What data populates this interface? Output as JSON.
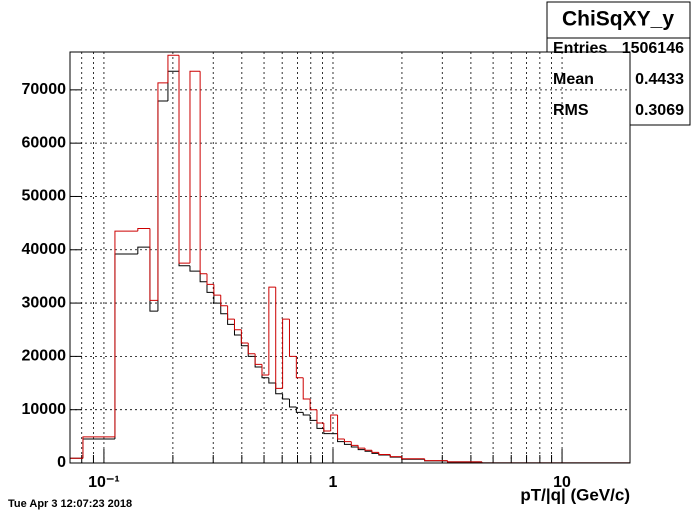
{
  "chart_data": {
    "type": "histogram",
    "title": "ChiSqXY_y",
    "x_label": "pT/|q| (GeV/c)",
    "timestamp": "Tue Apr  3 12:07:23 2018",
    "stats": [
      {
        "label": "Entries",
        "value": "1506146"
      },
      {
        "label": "Mean",
        "value": "0.4433"
      },
      {
        "label": "RMS",
        "value": "0.3069"
      }
    ],
    "log_x": true,
    "grid": true,
    "xlim": [
      0.0711,
      19.8
    ],
    "ylim": [
      0,
      77100
    ],
    "xticks": [
      {
        "value": 0.1,
        "label": "10⁻¹"
      },
      1,
      10
    ],
    "xticks_minor": [
      0.08,
      0.09,
      0.2,
      0.3,
      0.4,
      0.5,
      0.6,
      0.7,
      0.8,
      0.9,
      2,
      3,
      4,
      5,
      6,
      7,
      8,
      9
    ],
    "yticks": [
      0,
      10000,
      20000,
      30000,
      40000,
      50000,
      60000,
      70000
    ],
    "bins": [
      0.0711,
      0.081,
      0.1117,
      0.1406,
      0.1588,
      0.1721,
      0.1903,
      0.2127,
      0.2375,
      0.263,
      0.2818,
      0.302,
      0.3236,
      0.3467,
      0.3715,
      0.3981,
      0.4266,
      0.4571,
      0.4898,
      0.5248,
      0.5623,
      0.6026,
      0.6457,
      0.6918,
      0.7413,
      0.7943,
      0.8511,
      0.912,
      0.9772,
      1.0471,
      1.122,
      1.2023,
      1.2882,
      1.3804,
      1.4791,
      1.5849,
      1.7783,
      1.9953,
      2.5119,
      3.1623,
      4.4668,
      19.8
    ],
    "series": [
      {
        "color": "#000000",
        "values": [
          900,
          4500,
          39200,
          40500,
          28500,
          67900,
          73500,
          37000,
          36000,
          34000,
          32000,
          30000,
          28000,
          26000,
          24000,
          22000,
          20000,
          18000,
          16000,
          15000,
          13000,
          12000,
          10500,
          9500,
          9000,
          8000,
          6500,
          5500,
          5500,
          4000,
          3500,
          3000,
          2500,
          2200,
          1800,
          1500,
          1100,
          700,
          400,
          200,
          20
        ]
      },
      {
        "color": "#cc0000",
        "values": [
          900,
          4900,
          43500,
          44000,
          30500,
          71300,
          76500,
          37500,
          73500,
          35500,
          33500,
          31500,
          29500,
          27000,
          25000,
          22500,
          20500,
          18500,
          16500,
          33000,
          14000,
          27000,
          20000,
          16000,
          12000,
          10000,
          7500,
          6000,
          9000,
          4500,
          4000,
          3300,
          2800,
          2400,
          2000,
          1600,
          1200,
          800,
          450,
          220,
          20
        ]
      }
    ]
  }
}
